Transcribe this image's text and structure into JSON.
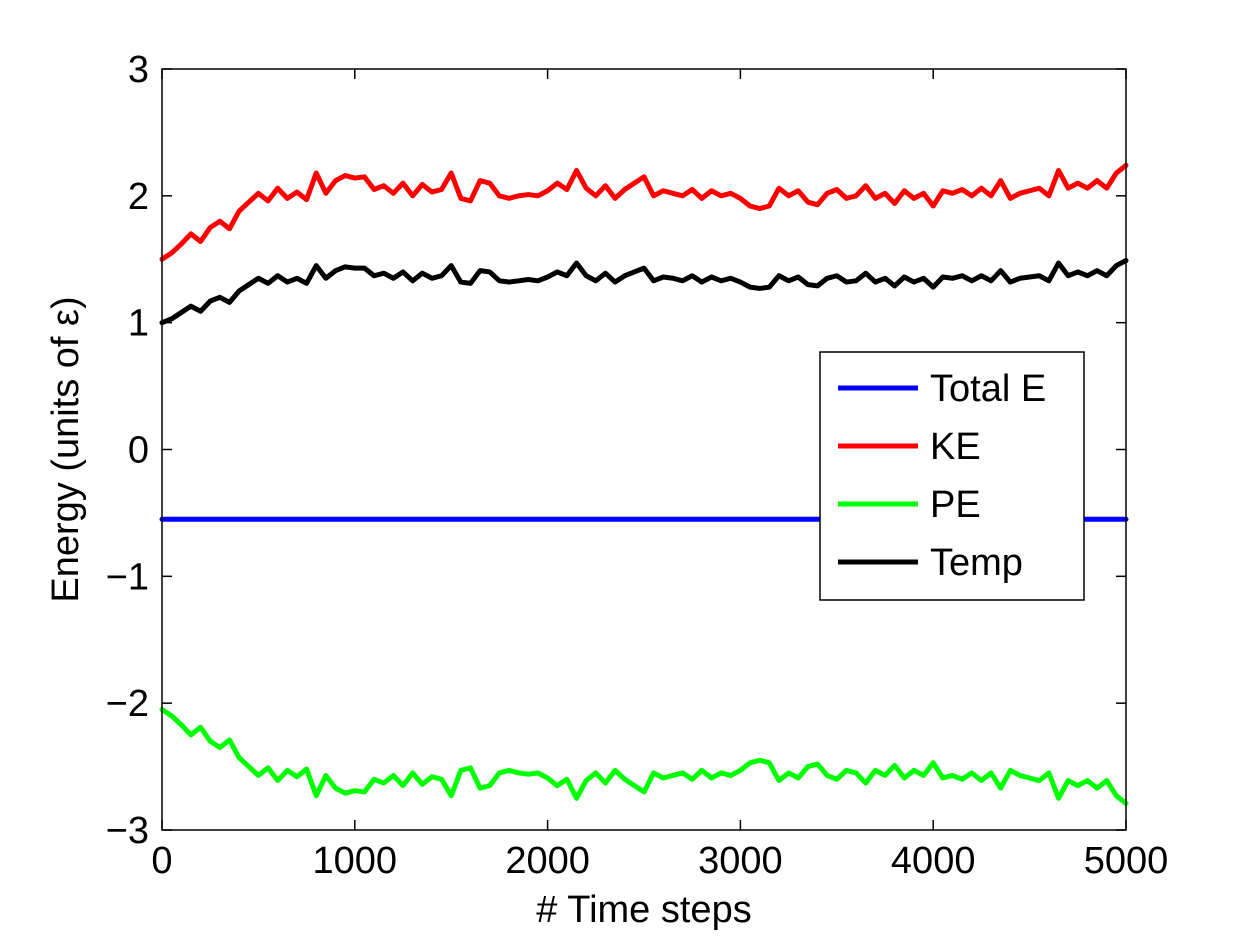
{
  "chart_data": {
    "type": "line",
    "title": "",
    "xlabel": "# Time steps",
    "ylabel": "Energy (units of ε)",
    "xlim": [
      0,
      5000
    ],
    "ylim": [
      -3,
      3
    ],
    "xticks": [
      0,
      1000,
      2000,
      3000,
      4000,
      5000
    ],
    "yticks": [
      -3,
      -2,
      -1,
      0,
      1,
      2,
      3
    ],
    "xtick_labels": [
      "0",
      "1000",
      "2000",
      "3000",
      "4000",
      "5000"
    ],
    "ytick_labels": [
      "−3",
      "−2",
      "−1",
      "0",
      "1",
      "2",
      "3"
    ],
    "grid": false,
    "legend_position": "right",
    "series": [
      {
        "name": "Total E",
        "color": "#0000ff",
        "x": [
          0,
          500,
          1000,
          1500,
          2000,
          2500,
          3000,
          3500,
          4000,
          4500,
          5000
        ],
        "y": [
          -0.55,
          -0.55,
          -0.55,
          -0.55,
          -0.55,
          -0.55,
          -0.55,
          -0.55,
          -0.55,
          -0.55,
          -0.55
        ]
      },
      {
        "name": "KE",
        "color": "#ff0000",
        "x": [
          0,
          50,
          100,
          150,
          200,
          250,
          300,
          350,
          400,
          450,
          500,
          550,
          600,
          650,
          700,
          750,
          800,
          850,
          900,
          950,
          1000,
          1050,
          1100,
          1150,
          1200,
          1250,
          1300,
          1350,
          1400,
          1450,
          1500,
          1550,
          1600,
          1650,
          1700,
          1750,
          1800,
          1850,
          1900,
          1950,
          2000,
          2050,
          2100,
          2150,
          2200,
          2250,
          2300,
          2350,
          2400,
          2450,
          2500,
          2550,
          2600,
          2650,
          2700,
          2750,
          2800,
          2850,
          2900,
          2950,
          3000,
          3050,
          3100,
          3150,
          3200,
          3250,
          3300,
          3350,
          3400,
          3450,
          3500,
          3550,
          3600,
          3650,
          3700,
          3750,
          3800,
          3850,
          3900,
          3950,
          4000,
          4050,
          4100,
          4150,
          4200,
          4250,
          4300,
          4350,
          4400,
          4450,
          4500,
          4550,
          4600,
          4650,
          4700,
          4750,
          4800,
          4850,
          4900,
          4950,
          5000
        ],
        "y": [
          1.5,
          1.55,
          1.62,
          1.7,
          1.64,
          1.75,
          1.8,
          1.74,
          1.88,
          1.95,
          2.02,
          1.96,
          2.06,
          1.98,
          2.03,
          1.97,
          2.18,
          2.02,
          2.12,
          2.16,
          2.14,
          2.15,
          2.05,
          2.08,
          2.02,
          2.1,
          2.0,
          2.09,
          2.03,
          2.05,
          2.18,
          1.98,
          1.96,
          2.12,
          2.1,
          2.0,
          1.98,
          2.0,
          2.01,
          2.0,
          2.04,
          2.1,
          2.05,
          2.2,
          2.06,
          2.0,
          2.08,
          1.98,
          2.05,
          2.1,
          2.15,
          2.0,
          2.04,
          2.02,
          2.0,
          2.05,
          1.98,
          2.04,
          2.0,
          2.02,
          1.98,
          1.92,
          1.9,
          1.92,
          2.06,
          2.0,
          2.04,
          1.95,
          1.93,
          2.02,
          2.05,
          1.98,
          2.0,
          2.08,
          1.98,
          2.02,
          1.94,
          2.04,
          1.98,
          2.02,
          1.92,
          2.04,
          2.02,
          2.05,
          2.0,
          2.06,
          2.0,
          2.12,
          1.98,
          2.02,
          2.04,
          2.06,
          2.0,
          2.2,
          2.06,
          2.1,
          2.06,
          2.12,
          2.06,
          2.18,
          2.24
        ]
      },
      {
        "name": "PE",
        "color": "#00ff00",
        "x": [
          0,
          50,
          100,
          150,
          200,
          250,
          300,
          350,
          400,
          450,
          500,
          550,
          600,
          650,
          700,
          750,
          800,
          850,
          900,
          950,
          1000,
          1050,
          1100,
          1150,
          1200,
          1250,
          1300,
          1350,
          1400,
          1450,
          1500,
          1550,
          1600,
          1650,
          1700,
          1750,
          1800,
          1850,
          1900,
          1950,
          2000,
          2050,
          2100,
          2150,
          2200,
          2250,
          2300,
          2350,
          2400,
          2450,
          2500,
          2550,
          2600,
          2650,
          2700,
          2750,
          2800,
          2850,
          2900,
          2950,
          3000,
          3050,
          3100,
          3150,
          3200,
          3250,
          3300,
          3350,
          3400,
          3450,
          3500,
          3550,
          3600,
          3650,
          3700,
          3750,
          3800,
          3850,
          3900,
          3950,
          4000,
          4050,
          4100,
          4150,
          4200,
          4250,
          4300,
          4350,
          4400,
          4450,
          4500,
          4550,
          4600,
          4650,
          4700,
          4750,
          4800,
          4850,
          4900,
          4950,
          5000
        ],
        "y": [
          -2.05,
          -2.1,
          -2.17,
          -2.25,
          -2.19,
          -2.3,
          -2.35,
          -2.29,
          -2.43,
          -2.5,
          -2.57,
          -2.51,
          -2.61,
          -2.53,
          -2.58,
          -2.52,
          -2.73,
          -2.57,
          -2.67,
          -2.71,
          -2.69,
          -2.7,
          -2.6,
          -2.63,
          -2.57,
          -2.65,
          -2.55,
          -2.64,
          -2.58,
          -2.6,
          -2.73,
          -2.53,
          -2.51,
          -2.67,
          -2.65,
          -2.55,
          -2.53,
          -2.55,
          -2.56,
          -2.55,
          -2.59,
          -2.65,
          -2.6,
          -2.75,
          -2.61,
          -2.55,
          -2.63,
          -2.53,
          -2.6,
          -2.65,
          -2.7,
          -2.55,
          -2.59,
          -2.57,
          -2.55,
          -2.6,
          -2.53,
          -2.59,
          -2.55,
          -2.57,
          -2.53,
          -2.47,
          -2.45,
          -2.47,
          -2.61,
          -2.55,
          -2.59,
          -2.5,
          -2.48,
          -2.57,
          -2.6,
          -2.53,
          -2.55,
          -2.63,
          -2.53,
          -2.57,
          -2.49,
          -2.59,
          -2.53,
          -2.57,
          -2.47,
          -2.59,
          -2.57,
          -2.6,
          -2.55,
          -2.61,
          -2.55,
          -2.67,
          -2.53,
          -2.57,
          -2.59,
          -2.61,
          -2.55,
          -2.75,
          -2.61,
          -2.65,
          -2.61,
          -2.67,
          -2.61,
          -2.73,
          -2.79
        ]
      },
      {
        "name": "Temp",
        "color": "#000000",
        "x": [
          0,
          50,
          100,
          150,
          200,
          250,
          300,
          350,
          400,
          450,
          500,
          550,
          600,
          650,
          700,
          750,
          800,
          850,
          900,
          950,
          1000,
          1050,
          1100,
          1150,
          1200,
          1250,
          1300,
          1350,
          1400,
          1450,
          1500,
          1550,
          1600,
          1650,
          1700,
          1750,
          1800,
          1850,
          1900,
          1950,
          2000,
          2050,
          2100,
          2150,
          2200,
          2250,
          2300,
          2350,
          2400,
          2450,
          2500,
          2550,
          2600,
          2650,
          2700,
          2750,
          2800,
          2850,
          2900,
          2950,
          3000,
          3050,
          3100,
          3150,
          3200,
          3250,
          3300,
          3350,
          3400,
          3450,
          3500,
          3550,
          3600,
          3650,
          3700,
          3750,
          3800,
          3850,
          3900,
          3950,
          4000,
          4050,
          4100,
          4150,
          4200,
          4250,
          4300,
          4350,
          4400,
          4450,
          4500,
          4550,
          4600,
          4650,
          4700,
          4750,
          4800,
          4850,
          4900,
          4950,
          5000
        ],
        "y": [
          1.0,
          1.03,
          1.08,
          1.13,
          1.09,
          1.17,
          1.2,
          1.16,
          1.25,
          1.3,
          1.35,
          1.31,
          1.37,
          1.32,
          1.35,
          1.31,
          1.45,
          1.35,
          1.41,
          1.44,
          1.43,
          1.43,
          1.37,
          1.39,
          1.35,
          1.4,
          1.33,
          1.39,
          1.35,
          1.37,
          1.45,
          1.32,
          1.31,
          1.41,
          1.4,
          1.33,
          1.32,
          1.33,
          1.34,
          1.33,
          1.36,
          1.4,
          1.37,
          1.47,
          1.37,
          1.33,
          1.39,
          1.32,
          1.37,
          1.4,
          1.43,
          1.33,
          1.36,
          1.35,
          1.33,
          1.37,
          1.32,
          1.36,
          1.33,
          1.35,
          1.32,
          1.28,
          1.27,
          1.28,
          1.37,
          1.33,
          1.36,
          1.3,
          1.29,
          1.35,
          1.37,
          1.32,
          1.33,
          1.39,
          1.32,
          1.35,
          1.29,
          1.36,
          1.32,
          1.35,
          1.28,
          1.36,
          1.35,
          1.37,
          1.33,
          1.37,
          1.33,
          1.41,
          1.32,
          1.35,
          1.36,
          1.37,
          1.33,
          1.47,
          1.37,
          1.4,
          1.37,
          1.41,
          1.37,
          1.45,
          1.49
        ]
      }
    ]
  }
}
